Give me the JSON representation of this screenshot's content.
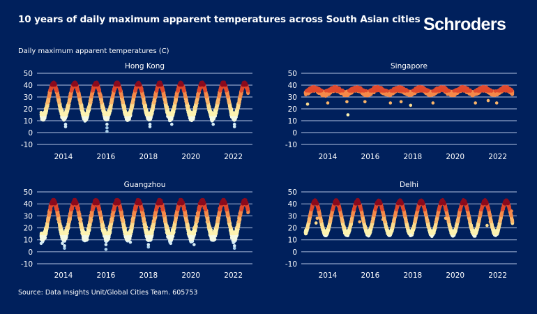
{
  "header": {
    "title": "10 years of daily maximum apparent temperatures across South Asian cities",
    "logo": "Schroders",
    "subtitle": "Daily maximum apparent temperatures (C)"
  },
  "footer": {
    "source": "Source: Data Insights Unit/Global Cities Team. 605753"
  },
  "colors": {
    "background": "#00205c",
    "grid": "#8fa3c8",
    "bins": [
      {
        "min": -99,
        "max": 5,
        "color": "#a9cfea"
      },
      {
        "min": 5,
        "max": 10,
        "color": "#d4ebf5"
      },
      {
        "min": 10,
        "max": 15,
        "color": "#f4f9e4"
      },
      {
        "min": 15,
        "max": 20,
        "color": "#fdf3b0"
      },
      {
        "min": 20,
        "max": 25,
        "color": "#fcdc8f"
      },
      {
        "min": 25,
        "max": 30,
        "color": "#fbb569"
      },
      {
        "min": 30,
        "max": 35,
        "color": "#f58a4b"
      },
      {
        "min": 35,
        "max": 40,
        "color": "#e04a2e"
      },
      {
        "min": 40,
        "max": 99,
        "color": "#8c0c1e"
      }
    ]
  },
  "chart_data": [
    {
      "type": "scatter",
      "title": "Hong Kong",
      "xlabel": "",
      "ylabel": "Daily maximum apparent temperatures (C)",
      "x_range": [
        2013.0,
        2022.75
      ],
      "ylim": [
        -10,
        50
      ],
      "yticks": [
        50,
        40,
        30,
        20,
        10,
        0,
        -10
      ],
      "xticks": [
        2014,
        2016,
        2018,
        2020,
        2022
      ],
      "grid": true,
      "seasonal_model": {
        "peak_phase": 0.58,
        "summer_max": 41,
        "winter_min": 13,
        "spread": 4,
        "summer_spread": 2.5
      },
      "outliers": [
        {
          "x": 2014.15,
          "y": 5
        },
        {
          "x": 2014.15,
          "y": 7
        },
        {
          "x": 2016.1,
          "y": 1
        },
        {
          "x": 2016.1,
          "y": 4
        },
        {
          "x": 2016.1,
          "y": 7
        },
        {
          "x": 2018.12,
          "y": 5
        },
        {
          "x": 2018.12,
          "y": 7
        },
        {
          "x": 2019.15,
          "y": 7
        },
        {
          "x": 2021.1,
          "y": 7
        },
        {
          "x": 2022.1,
          "y": 5
        },
        {
          "x": 2022.1,
          "y": 7
        }
      ]
    },
    {
      "type": "scatter",
      "title": "Singapore",
      "xlabel": "",
      "ylabel": "Daily maximum apparent temperatures (C)",
      "x_range": [
        2013.0,
        2022.75
      ],
      "ylim": [
        -10,
        50
      ],
      "yticks": [
        50,
        40,
        30,
        20,
        10,
        0,
        -10
      ],
      "xticks": [
        2014,
        2016,
        2018,
        2020,
        2022
      ],
      "grid": true,
      "seasonal_model": {
        "peak_phase": 0.4,
        "summer_max": 37,
        "winter_min": 33,
        "spread": 2.5,
        "summer_spread": 2.5
      },
      "outliers": [
        {
          "x": 2013.1,
          "y": 24
        },
        {
          "x": 2015.0,
          "y": 15
        },
        {
          "x": 2014.05,
          "y": 25
        },
        {
          "x": 2014.95,
          "y": 26
        },
        {
          "x": 2015.8,
          "y": 26
        },
        {
          "x": 2017.0,
          "y": 25
        },
        {
          "x": 2017.5,
          "y": 26
        },
        {
          "x": 2017.95,
          "y": 23
        },
        {
          "x": 2019.0,
          "y": 25
        },
        {
          "x": 2021.0,
          "y": 25
        },
        {
          "x": 2021.6,
          "y": 27
        },
        {
          "x": 2022.0,
          "y": 25
        }
      ]
    },
    {
      "type": "scatter",
      "title": "Guangzhou",
      "xlabel": "",
      "ylabel": "Daily maximum apparent temperatures (C)",
      "x_range": [
        2013.0,
        2022.75
      ],
      "ylim": [
        -10,
        50
      ],
      "yticks": [
        50,
        40,
        30,
        20,
        10,
        0,
        -10
      ],
      "xticks": [
        2014,
        2016,
        2018,
        2020,
        2022
      ],
      "grid": true,
      "seasonal_model": {
        "peak_phase": 0.58,
        "summer_max": 42,
        "winter_min": 12,
        "spread": 5,
        "summer_spread": 3
      },
      "outliers": [
        {
          "x": 2013.0,
          "y": 7
        },
        {
          "x": 2014.0,
          "y": 7
        },
        {
          "x": 2014.1,
          "y": 3
        },
        {
          "x": 2014.1,
          "y": 5
        },
        {
          "x": 2016.05,
          "y": 2
        },
        {
          "x": 2016.05,
          "y": 6
        },
        {
          "x": 2017.2,
          "y": 8
        },
        {
          "x": 2018.05,
          "y": 4
        },
        {
          "x": 2018.05,
          "y": 6
        },
        {
          "x": 2019.1,
          "y": 7
        },
        {
          "x": 2020.2,
          "y": 6
        },
        {
          "x": 2022.1,
          "y": 3
        },
        {
          "x": 2022.1,
          "y": 5
        }
      ]
    },
    {
      "type": "scatter",
      "title": "Delhi",
      "xlabel": "",
      "ylabel": "Daily maximum apparent temperatures (C)",
      "x_range": [
        2013.0,
        2022.75
      ],
      "ylim": [
        -10,
        50
      ],
      "yticks": [
        50,
        40,
        30,
        20,
        10,
        0,
        -10
      ],
      "xticks": [
        2014,
        2016,
        2018,
        2020,
        2022
      ],
      "grid": true,
      "seasonal_model": {
        "peak_phase": 0.45,
        "summer_max": 42,
        "winter_min": 15,
        "spread": 2.5,
        "summer_spread": 2
      },
      "outliers": [
        {
          "x": 2013.5,
          "y": 24
        },
        {
          "x": 2013.55,
          "y": 28
        },
        {
          "x": 2015.55,
          "y": 25
        },
        {
          "x": 2016.65,
          "y": 27
        },
        {
          "x": 2017.8,
          "y": 22
        },
        {
          "x": 2017.95,
          "y": 14
        },
        {
          "x": 2018.75,
          "y": 26
        },
        {
          "x": 2019.6,
          "y": 28
        },
        {
          "x": 2021.55,
          "y": 22
        },
        {
          "x": 2021.7,
          "y": 25
        },
        {
          "x": 2022.7,
          "y": 34
        }
      ]
    }
  ]
}
